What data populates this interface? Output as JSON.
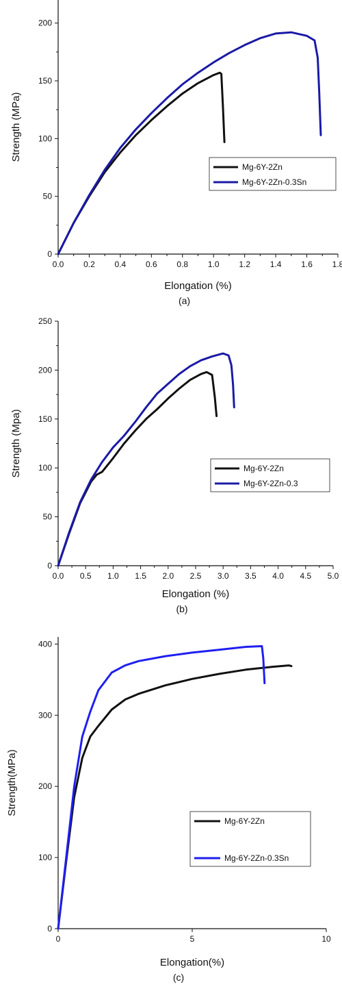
{
  "chart_data": [
    {
      "type": "line",
      "caption": "(a)",
      "xlabel": "Elongation (%)",
      "ylabel": "Strength (MPa)",
      "xlim": [
        0,
        1.8
      ],
      "ylim": [
        0,
        220
      ],
      "xticks": [
        0.0,
        0.2,
        0.4,
        0.6,
        0.8,
        1.0,
        1.2,
        1.4,
        1.6,
        1.8
      ],
      "xtick_labels": [
        "0.0",
        "0.2",
        "0.4",
        "0.6",
        "0.8",
        "1.0",
        "1.2",
        "1.4",
        "1.6",
        "1.8"
      ],
      "yticks": [
        0,
        50,
        100,
        150,
        200
      ],
      "ytick_labels": [
        "0",
        "50",
        "100",
        "150",
        "200"
      ],
      "minor_ticks": true,
      "grid": false,
      "legend_position": "center-right",
      "series": [
        {
          "name": "Mg-6Y-2Zn",
          "color": "#111111",
          "x": [
            0,
            0.1,
            0.2,
            0.3,
            0.4,
            0.5,
            0.6,
            0.7,
            0.8,
            0.9,
            1.0,
            1.04,
            1.05,
            1.06,
            1.07
          ],
          "y": [
            0,
            27,
            50,
            71,
            88,
            103,
            116,
            128,
            139,
            148,
            155,
            157,
            156,
            128,
            97
          ]
        },
        {
          "name": "Mg-6Y-2Zn-0.3Sn",
          "color": "#1a1aa6",
          "x": [
            0,
            0.1,
            0.2,
            0.3,
            0.4,
            0.5,
            0.6,
            0.7,
            0.8,
            0.9,
            1.0,
            1.1,
            1.2,
            1.3,
            1.4,
            1.5,
            1.6,
            1.65,
            1.67,
            1.68,
            1.69
          ],
          "y": [
            0,
            27,
            51,
            73,
            92,
            108,
            122,
            135,
            147,
            157,
            166,
            174,
            181,
            187,
            191,
            192,
            189,
            185,
            170,
            140,
            103
          ]
        }
      ]
    },
    {
      "type": "line",
      "caption": "(b)",
      "xlabel": "Elongation (%)",
      "ylabel": "Strength (Mpa)",
      "xlim": [
        0,
        5.0
      ],
      "ylim": [
        0,
        250
      ],
      "xticks": [
        0.0,
        0.5,
        1.0,
        1.5,
        2.0,
        2.5,
        3.0,
        3.5,
        4.0,
        4.5,
        5.0
      ],
      "xtick_labels": [
        "0.0",
        "0.5",
        "1.0",
        "1.5",
        "2.0",
        "2.5",
        "3.0",
        "3.5",
        "4.0",
        "4.5",
        "5.0"
      ],
      "yticks": [
        0,
        50,
        100,
        150,
        200,
        250
      ],
      "ytick_labels": [
        "0",
        "50",
        "100",
        "150",
        "200",
        "250"
      ],
      "minor_ticks": true,
      "grid": false,
      "legend_position": "center-right",
      "series": [
        {
          "name": "Mg-6Y-2Zn",
          "color": "#111111",
          "x": [
            0,
            0.2,
            0.4,
            0.6,
            0.7,
            0.8,
            1.0,
            1.2,
            1.4,
            1.6,
            1.8,
            2.0,
            2.2,
            2.4,
            2.6,
            2.7,
            2.8,
            2.85,
            2.88
          ],
          "y": [
            0,
            33,
            64,
            86,
            93,
            96,
            110,
            125,
            138,
            150,
            160,
            171,
            181,
            190,
            196,
            198,
            195,
            172,
            153
          ]
        },
        {
          "name": "Mg-6Y-2Zn-0.3",
          "color": "#1a1aa6",
          "x": [
            0,
            0.2,
            0.4,
            0.6,
            0.8,
            1.0,
            1.2,
            1.4,
            1.6,
            1.8,
            2.0,
            2.2,
            2.4,
            2.6,
            2.8,
            3.0,
            3.1,
            3.15,
            3.18,
            3.2
          ],
          "y": [
            0,
            34,
            65,
            88,
            106,
            121,
            133,
            147,
            162,
            176,
            186,
            196,
            204,
            210,
            214,
            217,
            215,
            205,
            185,
            162
          ]
        }
      ]
    },
    {
      "type": "line",
      "caption": "(c)",
      "xlabel": "Elongation(%)",
      "ylabel": "Strength(MPa)",
      "xlim": [
        0,
        10
      ],
      "ylim": [
        0,
        410
      ],
      "xticks": [
        0,
        5,
        10
      ],
      "xtick_labels": [
        "0",
        "5",
        "10"
      ],
      "yticks": [
        0,
        100,
        200,
        300,
        400
      ],
      "ytick_labels": [
        "0",
        "100",
        "200",
        "300",
        "400"
      ],
      "minor_ticks": false,
      "grid": false,
      "legend_position": "center-right",
      "series": [
        {
          "name": "Mg-6Y-2Zn",
          "color": "#111111",
          "x": [
            0,
            0.3,
            0.6,
            0.9,
            1.2,
            1.5,
            2.0,
            2.5,
            3.0,
            4.0,
            5.0,
            6.0,
            7.0,
            8.0,
            8.6,
            8.7
          ],
          "y": [
            0,
            95,
            185,
            240,
            270,
            285,
            308,
            322,
            330,
            342,
            351,
            358,
            364,
            368,
            370,
            369
          ]
        },
        {
          "name": "Mg-6Y-2Zn-0.3Sn",
          "color": "#1f1ff0",
          "x": [
            0,
            0.3,
            0.6,
            0.9,
            1.2,
            1.5,
            2.0,
            2.5,
            3.0,
            4.0,
            5.0,
            6.0,
            7.0,
            7.6,
            7.65,
            7.7
          ],
          "y": [
            0,
            100,
            200,
            270,
            305,
            335,
            360,
            370,
            376,
            383,
            388,
            392,
            396,
            397,
            380,
            345
          ]
        }
      ]
    }
  ]
}
